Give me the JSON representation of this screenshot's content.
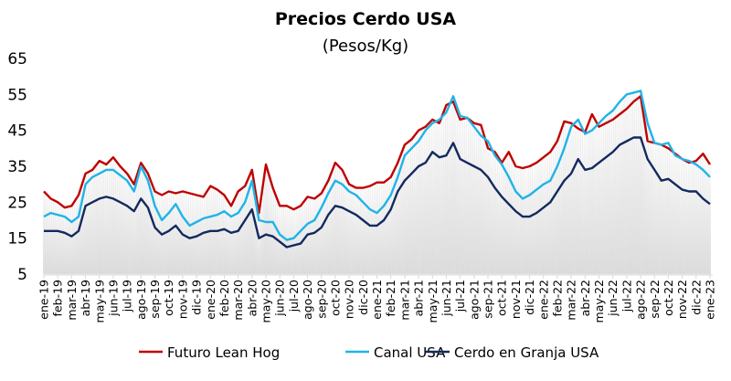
{
  "chart_data": {
    "type": "line",
    "title": "Precios Cerdo USA",
    "subtitle": "(Pesos/Kg)",
    "xlabel": "",
    "ylabel": "",
    "ylim": [
      5,
      65
    ],
    "yticks": [
      5,
      15,
      25,
      35,
      45,
      55,
      65
    ],
    "grid": false,
    "legend_position": "bottom",
    "tick_labels": [
      "ene-19",
      "feb-19",
      "mar-19",
      "abr-19",
      "may-19",
      "jun-19",
      "jul-19",
      "ago-19",
      "sep-19",
      "oct-19",
      "nov-19",
      "dic-19",
      "ene-20",
      "feb-20",
      "mar-20",
      "abr-20",
      "may-20",
      "jun-20",
      "jul-20",
      "ago-20",
      "sep-20",
      "oct-20",
      "nov-20",
      "dic-20",
      "ene-21",
      "feb-21",
      "mar-21",
      "abr-21",
      "may-21",
      "jun-21",
      "jul-21",
      "ago-21",
      "sep-21",
      "oct-21",
      "nov-21",
      "dic-21",
      "ene-22",
      "feb-22",
      "mar-22",
      "abr-22",
      "may-22",
      "jun-22",
      "jul-22",
      "ago-22",
      "sep-22",
      "oct-22",
      "nov-22",
      "dic-22",
      "ene-23"
    ],
    "x_note": "values sampled twice per month from ene-19 to ene-23",
    "series": [
      {
        "name": "Futuro Lean Hog",
        "color": "#C00000",
        "values": [
          28,
          26,
          25,
          23.5,
          24,
          27,
          33,
          34,
          36.5,
          35.5,
          37.5,
          35,
          33,
          30,
          36,
          33,
          28,
          27,
          28,
          27.5,
          28,
          27.5,
          27,
          26.5,
          29.5,
          28.5,
          27,
          24,
          28,
          29.5,
          34,
          22,
          35.5,
          29,
          24,
          24,
          23,
          24,
          26.5,
          26,
          27.5,
          31,
          36,
          34,
          30,
          29,
          29,
          29.5,
          30.5,
          30.5,
          32,
          36,
          41,
          42.5,
          45,
          46,
          48,
          47,
          52,
          53,
          48,
          48.5,
          47,
          46.5,
          40,
          39,
          36,
          39,
          35,
          34.5,
          35,
          36,
          37.5,
          39,
          42,
          47.5,
          47,
          45.5,
          44.5,
          49.5,
          46,
          47,
          48,
          49.5,
          51,
          53,
          54.5,
          42,
          41.5,
          41,
          40,
          38.5,
          37,
          36,
          36.5,
          38.5,
          35.5
        ]
      },
      {
        "name": "Canal USA",
        "color": "#1FB4E8",
        "values": [
          21,
          22,
          21.5,
          21,
          19.5,
          21,
          30,
          32,
          33,
          34,
          34,
          32.5,
          31,
          28,
          35,
          31,
          24,
          20,
          22,
          24.5,
          21,
          18.5,
          19.5,
          20.5,
          21,
          21.5,
          22.5,
          21,
          22,
          25,
          31,
          20,
          19.5,
          19.5,
          16,
          14.5,
          15,
          17,
          19,
          20,
          23.5,
          27.5,
          31,
          30,
          28,
          27,
          25,
          23,
          22,
          24,
          27,
          32,
          38,
          40,
          42,
          45,
          47,
          48,
          50,
          54.5,
          49,
          48.5,
          46,
          43.5,
          42,
          38,
          35.5,
          32,
          28,
          26,
          27,
          28.5,
          30,
          31,
          35,
          40,
          46,
          48,
          44,
          45,
          47,
          49,
          50.5,
          53,
          55,
          55.5,
          56,
          47,
          41.5,
          41,
          41.5,
          38,
          37,
          36.5,
          35.5,
          34,
          32
        ]
      },
      {
        "name": "Cerdo en Granja USA",
        "color": "#132A5E",
        "values": [
          17,
          17,
          17,
          16.5,
          15.5,
          17,
          24,
          25,
          26,
          26.5,
          26,
          25,
          24,
          22.5,
          26,
          23.5,
          18,
          16,
          17,
          18.5,
          16,
          15,
          15.5,
          16.5,
          17,
          17,
          17.5,
          16.5,
          17,
          20,
          23,
          15,
          16,
          15.5,
          14,
          12.5,
          13,
          13.5,
          16,
          16.5,
          18,
          21.5,
          24,
          23.5,
          22.5,
          21.5,
          20,
          18.5,
          18.5,
          20,
          23,
          28,
          31,
          33,
          35,
          36,
          39,
          37.5,
          38,
          41.5,
          37,
          36,
          35,
          34,
          32,
          29,
          26.5,
          24.5,
          22.5,
          21,
          21,
          22,
          23.5,
          25,
          28,
          31,
          33,
          37,
          34,
          34.5,
          36,
          37.5,
          39,
          41,
          42,
          43,
          43,
          37,
          34,
          31,
          31.5,
          30,
          28.5,
          28,
          28,
          26,
          24.5
        ]
      }
    ]
  }
}
